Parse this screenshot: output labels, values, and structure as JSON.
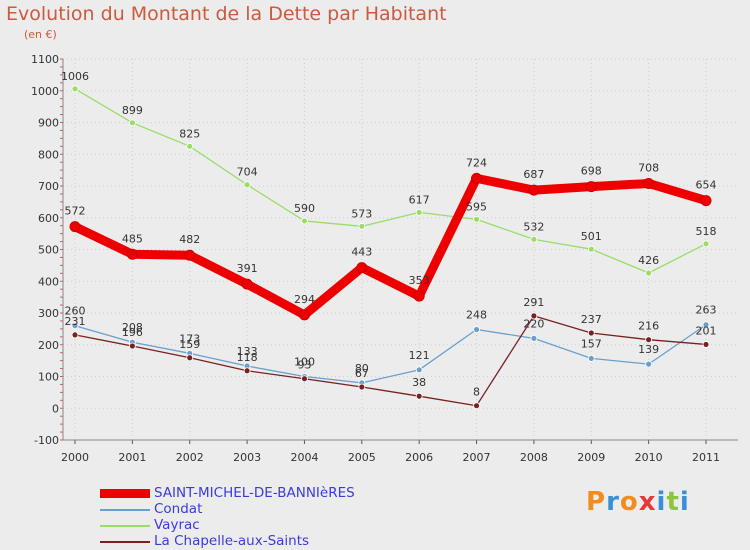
{
  "title": "Evolution du Montant de la Dette par Habitant",
  "subtitle": "(en €)",
  "logo": {
    "text": "Proxiti",
    "colors": [
      "#f28c1c",
      "#3a8fd6",
      "#f28c1c",
      "#e23a3a",
      "#3a8fd6",
      "#8cc63f",
      "#3a8fd6"
    ]
  },
  "chart_data": {
    "type": "line",
    "x": [
      "2000",
      "2001",
      "2002",
      "2003",
      "2004",
      "2005",
      "2006",
      "2007",
      "2008",
      "2009",
      "2010",
      "2011"
    ],
    "ylim": [
      -100,
      1100
    ],
    "yticks": [
      "-100",
      "0",
      "100",
      "200",
      "300",
      "400",
      "500",
      "600",
      "700",
      "800",
      "900",
      "1000",
      "1100"
    ],
    "grid": "horizontal",
    "legend_position": "bottom-left",
    "series": [
      {
        "name": "SAINT-MICHEL-DE-BANNIèRES",
        "color": "#ee0000",
        "values": [
          572,
          485,
          482,
          391,
          294,
          443,
          353,
          724,
          687,
          698,
          708,
          654
        ],
        "labels": [
          "572",
          "485",
          "482",
          "391",
          "294",
          "443",
          "353",
          "724",
          "687",
          "698",
          "708",
          "654"
        ]
      },
      {
        "name": "Condat",
        "color": "#6a9fcd",
        "values": [
          260,
          208,
          173,
          133,
          100,
          80,
          121,
          248,
          220,
          157,
          139,
          263
        ],
        "labels": [
          "260",
          "208",
          "173",
          "133",
          "100",
          "80",
          "121",
          "248",
          "220",
          "157",
          "139",
          "263"
        ]
      },
      {
        "name": "Vayrac",
        "color": "#99dd66",
        "values": [
          1006,
          899,
          825,
          704,
          590,
          573,
          617,
          595,
          532,
          501,
          426,
          518
        ],
        "labels": [
          "1006",
          "899",
          "825",
          "704",
          "590",
          "573",
          "617",
          "595",
          "532",
          "501",
          "426",
          "518"
        ]
      },
      {
        "name": "La Chapelle-aux-Saints",
        "color": "#7a2020",
        "values": [
          231,
          196,
          159,
          118,
          93,
          67,
          38,
          8,
          291,
          237,
          216,
          201
        ],
        "labels": [
          "231",
          "196",
          "159",
          "118",
          "93",
          "67",
          "38",
          "8",
          "291",
          "237",
          "216",
          "201"
        ]
      }
    ]
  }
}
